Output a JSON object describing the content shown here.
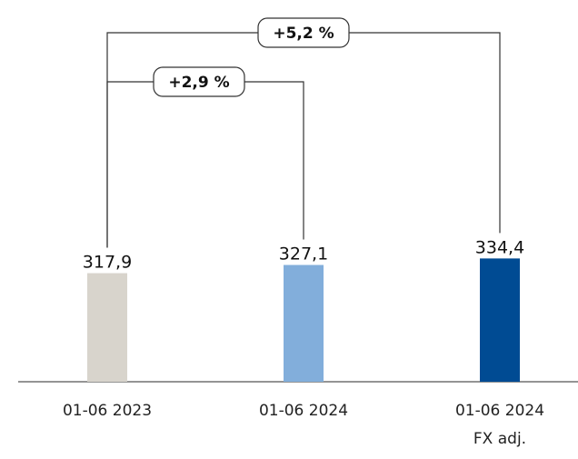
{
  "chart_data": {
    "type": "bar",
    "categories": [
      {
        "label": "01-06 2023",
        "sublabel": ""
      },
      {
        "label": "01-06 2024",
        "sublabel": ""
      },
      {
        "label": "01-06 2024",
        "sublabel": "FX adj."
      }
    ],
    "values": [
      317.9,
      327.1,
      334.4
    ],
    "value_labels": [
      "317,9",
      "327,1",
      "334,4"
    ],
    "colors": [
      "#d8d4cc",
      "#82aedb",
      "#004b93"
    ],
    "grid": false,
    "annotations": [
      {
        "label": "+2,9 %",
        "from": 0,
        "to": 1
      },
      {
        "label": "+5,2 %",
        "from": 0,
        "to": 2
      }
    ]
  }
}
